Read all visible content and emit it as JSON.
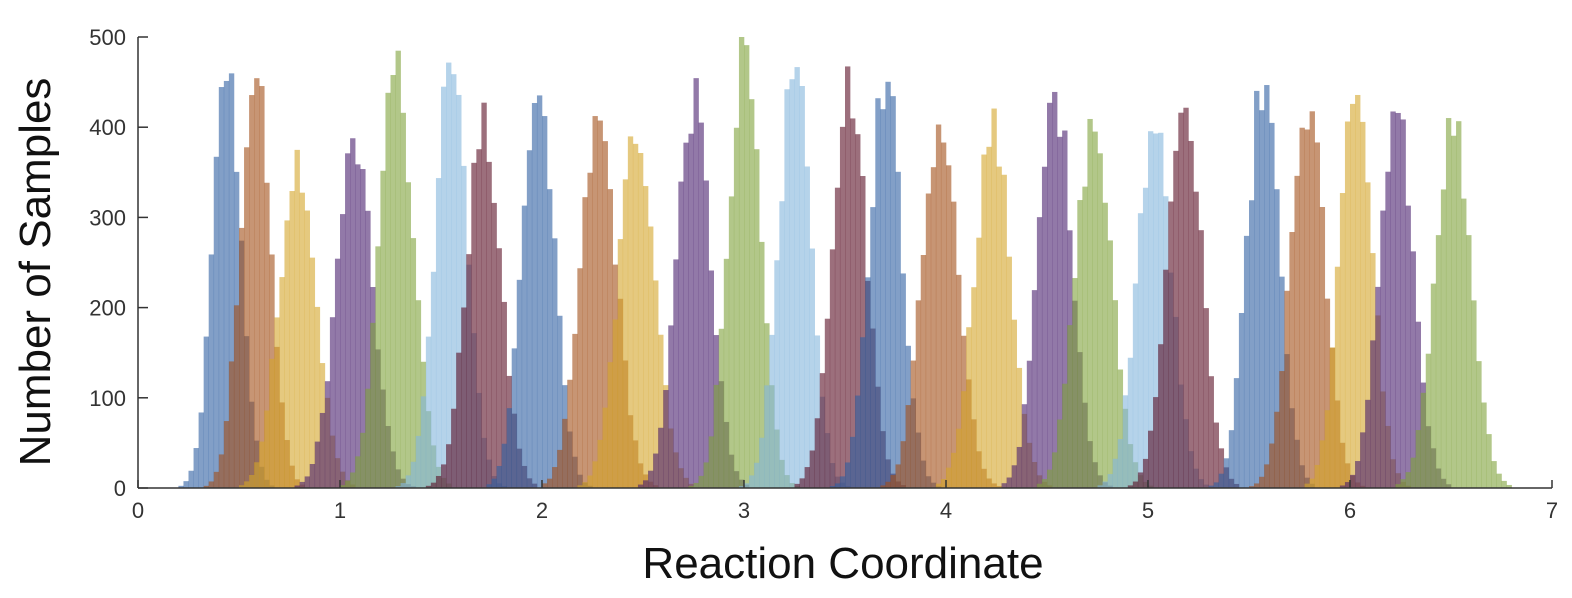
{
  "chart_data": {
    "type": "bar",
    "subtype": "overlapping-histograms",
    "title": "",
    "xlabel": "Reaction Coordinate",
    "ylabel": "Number of Samples",
    "xlim": [
      0,
      7
    ],
    "ylim": [
      0,
      500
    ],
    "xticks": [
      "0",
      "1",
      "2",
      "3",
      "4",
      "5",
      "6",
      "7"
    ],
    "yticks": [
      "0",
      "100",
      "200",
      "300",
      "400",
      "500"
    ],
    "grid": false,
    "legend": "none",
    "bin_width": 0.025,
    "bar_opacity": 0.6,
    "series": [
      {
        "center": 0.44,
        "peak": 475,
        "sigma": 0.07,
        "color": "#2e5fa1"
      },
      {
        "center": 0.58,
        "peak": 468,
        "sigma": 0.075,
        "color": "#a24e17"
      },
      {
        "center": 0.79,
        "peak": 375,
        "sigma": 0.09,
        "color": "#d4a52a"
      },
      {
        "center": 1.07,
        "peak": 388,
        "sigma": 0.09,
        "color": "#4a1f6e"
      },
      {
        "center": 1.28,
        "peak": 473,
        "sigma": 0.085,
        "color": "#7ea23a"
      },
      {
        "center": 1.55,
        "peak": 475,
        "sigma": 0.08,
        "color": "#84b6dc"
      },
      {
        "center": 1.71,
        "peak": 408,
        "sigma": 0.085,
        "color": "#5a0f24"
      },
      {
        "center": 1.98,
        "peak": 453,
        "sigma": 0.08,
        "color": "#2e5fa1"
      },
      {
        "center": 2.28,
        "peak": 413,
        "sigma": 0.09,
        "color": "#a24e17"
      },
      {
        "center": 2.47,
        "peak": 410,
        "sigma": 0.09,
        "color": "#d4a52a"
      },
      {
        "center": 2.75,
        "peak": 438,
        "sigma": 0.085,
        "color": "#4a1f6e"
      },
      {
        "center": 3.0,
        "peak": 487,
        "sigma": 0.08,
        "color": "#7ea23a"
      },
      {
        "center": 3.25,
        "peak": 475,
        "sigma": 0.08,
        "color": "#84b6dc"
      },
      {
        "center": 3.52,
        "peak": 457,
        "sigma": 0.085,
        "color": "#5a0f24"
      },
      {
        "center": 3.7,
        "peak": 466,
        "sigma": 0.08,
        "color": "#2e5fa1"
      },
      {
        "center": 3.97,
        "peak": 412,
        "sigma": 0.09,
        "color": "#a24e17"
      },
      {
        "center": 4.23,
        "peak": 408,
        "sigma": 0.09,
        "color": "#d4a52a"
      },
      {
        "center": 4.54,
        "peak": 445,
        "sigma": 0.085,
        "color": "#4a1f6e"
      },
      {
        "center": 4.73,
        "peak": 410,
        "sigma": 0.09,
        "color": "#7ea23a"
      },
      {
        "center": 5.03,
        "peak": 410,
        "sigma": 0.085,
        "color": "#84b6dc"
      },
      {
        "center": 5.18,
        "peak": 440,
        "sigma": 0.085,
        "color": "#5a0f24"
      },
      {
        "center": 5.57,
        "peak": 458,
        "sigma": 0.08,
        "color": "#2e5fa1"
      },
      {
        "center": 5.79,
        "peak": 432,
        "sigma": 0.085,
        "color": "#a24e17"
      },
      {
        "center": 6.03,
        "peak": 460,
        "sigma": 0.08,
        "color": "#d4a52a"
      },
      {
        "center": 6.23,
        "peak": 422,
        "sigma": 0.085,
        "color": "#4a1f6e"
      },
      {
        "center": 6.51,
        "peak": 415,
        "sigma": 0.09,
        "color": "#7ea23a"
      }
    ]
  }
}
